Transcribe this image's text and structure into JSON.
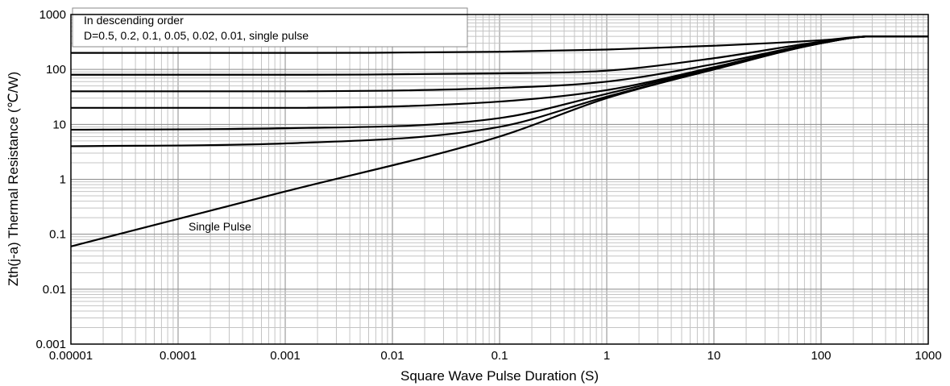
{
  "chart_data": {
    "type": "line",
    "xlabel": "Square Wave Pulse Duration (S)",
    "ylabel": "Zth(j-a) Thermal Resistance (℃/W)",
    "x_scale": "log",
    "y_scale": "log",
    "xlim": [
      1e-05,
      1000
    ],
    "ylim": [
      0.001,
      1000
    ],
    "grid": true,
    "x_tick_labels": [
      "0.00001",
      "0.0001",
      "0.001",
      "0.01",
      "0.1",
      "1",
      "10",
      "100",
      "1000"
    ],
    "y_tick_labels": [
      "0.001",
      "0.01",
      "0.1",
      "1",
      "10",
      "100",
      "1000"
    ],
    "legend_box": {
      "line1": "In descending order",
      "line2": "D=0.5, 0.2, 0.1, 0.05, 0.02, 0.01, single pulse"
    },
    "annotations": [
      {
        "text": "Single Pulse",
        "x": 0.0001,
        "y": 0.13
      }
    ],
    "series": [
      {
        "x": [
          1e-05,
          0.001,
          0.1,
          1,
          10,
          100,
          300,
          1000
        ],
        "y": [
          200,
          200,
          210,
          230,
          270,
          340,
          400,
          400
        ]
      },
      {
        "x": [
          1e-05,
          0.001,
          0.1,
          1,
          10,
          100,
          300,
          1000
        ],
        "y": [
          80,
          80,
          85,
          95,
          160,
          320,
          400,
          400
        ]
      },
      {
        "x": [
          1e-05,
          0.001,
          0.1,
          1,
          10,
          100,
          300,
          1000
        ],
        "y": [
          40,
          40,
          46,
          60,
          125,
          310,
          400,
          400
        ]
      },
      {
        "x": [
          1e-05,
          0.001,
          0.1,
          1,
          10,
          100,
          300,
          1000
        ],
        "y": [
          20,
          20,
          26,
          42,
          110,
          305,
          400,
          400
        ]
      },
      {
        "x": [
          1e-05,
          0.001,
          0.1,
          1,
          10,
          100,
          300,
          1000
        ],
        "y": [
          8,
          8.5,
          13,
          36,
          105,
          300,
          400,
          400
        ]
      },
      {
        "x": [
          1e-05,
          0.001,
          0.1,
          1,
          10,
          100,
          300,
          1000
        ],
        "y": [
          4,
          4.5,
          9,
          32,
          100,
          300,
          400,
          400
        ]
      },
      {
        "x": [
          1e-05,
          0.001,
          0.1,
          1,
          10,
          100,
          300,
          1000
        ],
        "y": [
          0.06,
          0.6,
          6,
          30,
          100,
          300,
          400,
          400
        ]
      }
    ]
  }
}
